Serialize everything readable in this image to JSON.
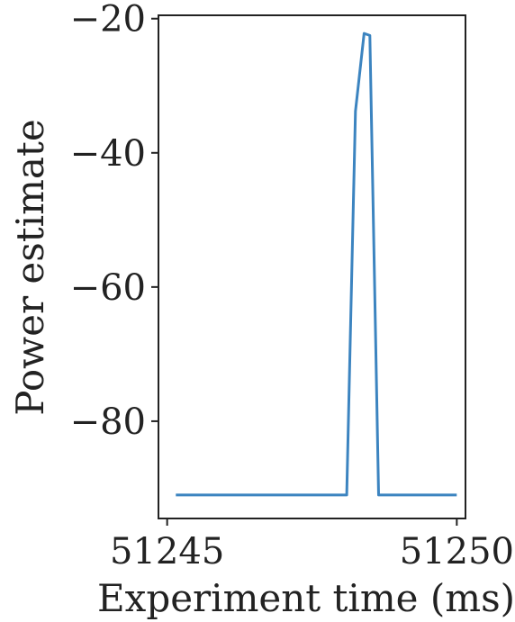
{
  "chart_data": {
    "type": "line",
    "title": "",
    "xlabel": "Experiment time (ms)",
    "ylabel": "Power estimate",
    "xlim": [
      51244.85,
      51250.15
    ],
    "ylim": [
      -94.5,
      -19.5
    ],
    "xticks": [
      51245,
      51250
    ],
    "xtick_labels": [
      "51245",
      "51250"
    ],
    "yticks": [
      -20,
      -40,
      -60,
      -80
    ],
    "ytick_labels": [
      "−20",
      "−40",
      "−60",
      "−80"
    ],
    "grid": false,
    "series": [
      {
        "color": "#3c84c0",
        "x": [
          51245.15,
          51246.0,
          51247.0,
          51248.0,
          51248.1,
          51248.25,
          51248.4,
          51248.5,
          51248.65,
          51249.0,
          51250.0
        ],
        "y": [
          -91.0,
          -91.0,
          -91.0,
          -91.0,
          -91.0,
          -33.8,
          -22.2,
          -22.5,
          -91.0,
          -91.0,
          -91.0
        ]
      }
    ]
  }
}
